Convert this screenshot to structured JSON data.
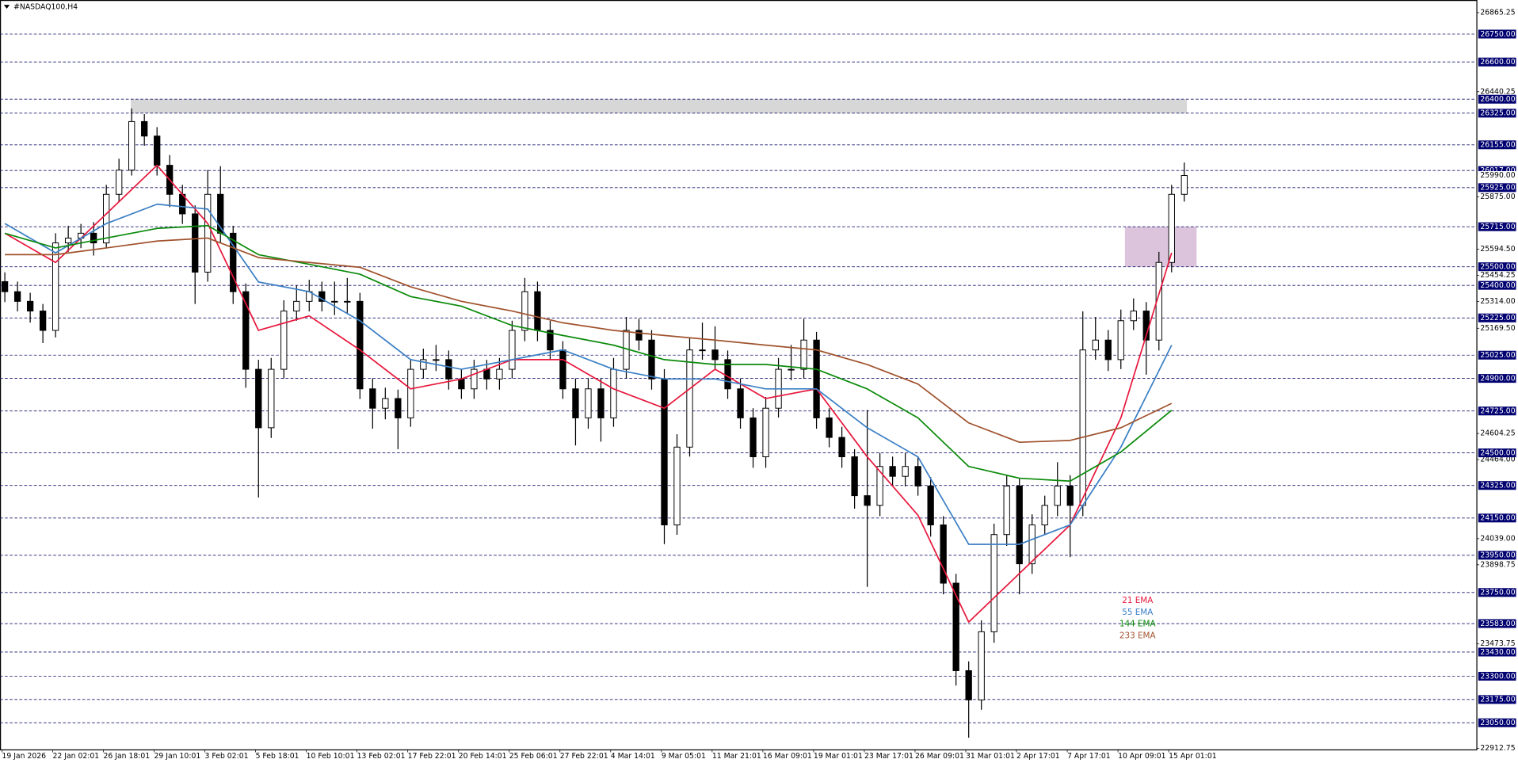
{
  "chart_data": {
    "type": "candlestick",
    "title": "#NASDAQ100,H4",
    "ylim": [
      22907,
      26933
    ],
    "yticks": [
      {
        "value": 26865.25,
        "label": "26865.25"
      },
      {
        "value": 26440.25,
        "label": "26440.25"
      },
      {
        "value": 25875,
        "label": "25875.00"
      },
      {
        "value": 25594.5,
        "label": "25594.50"
      },
      {
        "value": 25454.25,
        "label": "25454.25"
      },
      {
        "value": 25314,
        "label": "25314.00"
      },
      {
        "value": 25169.5,
        "label": "25169.50"
      },
      {
        "value": 24604.25,
        "label": "24604.25"
      },
      {
        "value": 24464,
        "label": "24464.00"
      },
      {
        "value": 24039,
        "label": "24039.00"
      },
      {
        "value": 23898.75,
        "label": "23898.75"
      },
      {
        "value": 23473.75,
        "label": "23473.75"
      },
      {
        "value": 22912.75,
        "label": "22912.75"
      }
    ],
    "levels": [
      {
        "value": 26750,
        "label": "26750.00"
      },
      {
        "value": 26600,
        "label": "26600.00"
      },
      {
        "value": 26400,
        "label": "26400.00"
      },
      {
        "value": 26325,
        "label": "26325.00"
      },
      {
        "value": 26155,
        "label": "26155.00"
      },
      {
        "value": 26017,
        "label": "26017.00"
      },
      {
        "value": 25925,
        "label": "25925.00"
      },
      {
        "value": 25715,
        "label": "25715.00"
      },
      {
        "value": 25500,
        "label": "25500.00"
      },
      {
        "value": 25400,
        "label": "25400.00"
      },
      {
        "value": 25225,
        "label": "25225.00"
      },
      {
        "value": 25025,
        "label": "25025.00"
      },
      {
        "value": 24900,
        "label": "24900.00"
      },
      {
        "value": 24725,
        "label": "24725.00"
      },
      {
        "value": 24500,
        "label": "24500.00"
      },
      {
        "value": 24325,
        "label": "24325.00"
      },
      {
        "value": 24150,
        "label": "24150.00"
      },
      {
        "value": 23950,
        "label": "23950.00"
      },
      {
        "value": 23750,
        "label": "23750.00"
      },
      {
        "value": 23583,
        "label": "23583.00"
      },
      {
        "value": 23430,
        "label": "23430.00"
      },
      {
        "value": 23300,
        "label": "23300.00"
      },
      {
        "value": 23175,
        "label": "23175.00"
      },
      {
        "value": 23050,
        "label": "23050.00"
      }
    ],
    "last_price": {
      "value": 25990,
      "label": "25990.00"
    },
    "x_labels": [
      "19 Jan 2026",
      "22 Jan 02:01",
      "26 Jan 18:01",
      "29 Jan 10:01",
      "3 Feb 02:01",
      "5 Feb 18:01",
      "10 Feb 10:01",
      "13 Feb 02:01",
      "17 Feb 22:01",
      "20 Feb 14:01",
      "25 Feb 06:01",
      "27 Feb 22:01",
      "4 Mar 14:01",
      "9 Mar 05:01",
      "11 Mar 21:01",
      "16 Mar 09:01",
      "19 Mar 01:01",
      "23 Mar 17:01",
      "26 Mar 09:01",
      "31 Mar 01:01",
      "2 Apr 17:01",
      "7 Apr 17:01",
      "10 Apr 09:01",
      "15 Apr 01:01"
    ],
    "ohlc": [
      [
        25420,
        25470,
        25310,
        25366
      ],
      [
        25366,
        25420,
        25260,
        25314
      ],
      [
        25314,
        25360,
        25200,
        25262
      ],
      [
        25262,
        25300,
        25090,
        25158
      ],
      [
        25158,
        25680,
        25120,
        25628
      ],
      [
        25628,
        25720,
        25580,
        25654
      ],
      [
        25654,
        25730,
        25600,
        25680
      ],
      [
        25680,
        25740,
        25560,
        25628
      ],
      [
        25628,
        25940,
        25600,
        25889
      ],
      [
        25889,
        26080,
        25850,
        26019
      ],
      [
        26019,
        26350,
        25990,
        26280
      ],
      [
        26280,
        26320,
        26150,
        26202
      ],
      [
        26202,
        26250,
        25990,
        26045
      ],
      [
        26045,
        26100,
        25820,
        25889
      ],
      [
        25889,
        25940,
        25730,
        25784
      ],
      [
        25784,
        25830,
        25300,
        25471
      ],
      [
        25471,
        26020,
        25420,
        25889
      ],
      [
        25889,
        26040,
        25630,
        25680
      ],
      [
        25680,
        25720,
        25300,
        25366
      ],
      [
        25366,
        25410,
        24850,
        24949
      ],
      [
        24949,
        25000,
        24260,
        24635
      ],
      [
        24635,
        25010,
        24580,
        24949
      ],
      [
        24949,
        25320,
        24900,
        25262
      ],
      [
        25262,
        25400,
        25210,
        25314
      ],
      [
        25314,
        25430,
        25260,
        25366
      ],
      [
        25366,
        25420,
        25260,
        25314
      ],
      [
        25314,
        25420,
        25240,
        25314
      ],
      [
        25314,
        25440,
        25250,
        25314
      ],
      [
        25314,
        25360,
        24790,
        24844
      ],
      [
        24844,
        24900,
        24630,
        24740
      ],
      [
        24740,
        24850,
        24680,
        24792
      ],
      [
        24792,
        24840,
        24520,
        24688
      ],
      [
        24688,
        25000,
        24640,
        24949
      ],
      [
        24949,
        25060,
        24900,
        25001
      ],
      [
        25001,
        25080,
        24940,
        25001
      ],
      [
        25001,
        25050,
        24840,
        24897
      ],
      [
        24897,
        24950,
        24790,
        24844
      ],
      [
        24844,
        25000,
        24790,
        24949
      ],
      [
        24949,
        25000,
        24840,
        24897
      ],
      [
        24897,
        25010,
        24840,
        24949
      ],
      [
        24949,
        25210,
        24900,
        25158
      ],
      [
        25158,
        25440,
        25100,
        25366
      ],
      [
        25366,
        25420,
        25100,
        25158
      ],
      [
        25158,
        25210,
        25000,
        25053
      ],
      [
        25053,
        25100,
        24790,
        24844
      ],
      [
        24844,
        24900,
        24540,
        24688
      ],
      [
        24688,
        24900,
        24630,
        24844
      ],
      [
        24844,
        24900,
        24560,
        24688
      ],
      [
        24688,
        25010,
        24640,
        24949
      ],
      [
        24949,
        25230,
        24900,
        25158
      ],
      [
        25158,
        25220,
        25050,
        25106
      ],
      [
        25106,
        25160,
        24840,
        24897
      ],
      [
        24897,
        24950,
        24010,
        24113
      ],
      [
        24113,
        24600,
        24060,
        24531
      ],
      [
        24531,
        25120,
        24480,
        25053
      ],
      [
        25053,
        25200,
        25000,
        25053
      ],
      [
        25053,
        25180,
        24950,
        25001
      ],
      [
        25001,
        25050,
        24790,
        24844
      ],
      [
        24844,
        24900,
        24630,
        24688
      ],
      [
        24688,
        24740,
        24420,
        24479
      ],
      [
        24479,
        24800,
        24420,
        24740
      ],
      [
        24740,
        25010,
        24690,
        24949
      ],
      [
        24949,
        25080,
        24890,
        24949
      ],
      [
        24949,
        25220,
        24900,
        25106
      ],
      [
        25106,
        25150,
        24630,
        24688
      ],
      [
        24688,
        24740,
        24530,
        24583
      ],
      [
        24583,
        24640,
        24420,
        24479
      ],
      [
        24479,
        24520,
        24200,
        24270
      ],
      [
        24270,
        24730,
        23780,
        24218
      ],
      [
        24218,
        24500,
        24160,
        24427
      ],
      [
        24427,
        24480,
        24320,
        24374
      ],
      [
        24374,
        24500,
        24320,
        24427
      ],
      [
        24427,
        24480,
        24270,
        24322
      ],
      [
        24322,
        24370,
        24050,
        24113
      ],
      [
        24113,
        24160,
        23740,
        23800
      ],
      [
        23800,
        23850,
        23250,
        23330
      ],
      [
        23330,
        23380,
        22970,
        23173
      ],
      [
        23173,
        23600,
        23120,
        23539
      ],
      [
        23539,
        24120,
        23480,
        24061
      ],
      [
        24061,
        24380,
        24000,
        24322
      ],
      [
        24322,
        24360,
        23740,
        23904
      ],
      [
        23904,
        24170,
        23850,
        24113
      ],
      [
        24113,
        24270,
        24060,
        24218
      ],
      [
        24218,
        24450,
        24160,
        24322
      ],
      [
        24322,
        24380,
        23940,
        24218
      ],
      [
        24218,
        25260,
        24160,
        25053
      ],
      [
        25053,
        25230,
        25000,
        25106
      ],
      [
        25106,
        25160,
        24940,
        25001
      ],
      [
        25001,
        25270,
        24950,
        25210
      ],
      [
        25210,
        25330,
        25160,
        25262
      ],
      [
        25262,
        25310,
        24920,
        25106
      ],
      [
        25106,
        25580,
        25050,
        25523
      ],
      [
        25523,
        25940,
        25470,
        25889
      ],
      [
        25889,
        26060,
        25850,
        25990
      ]
    ],
    "ema": [
      {
        "name": "21 EMA",
        "color": "#e8173c",
        "values": [
          25680,
          25523,
          25784,
          26045,
          25732,
          25158,
          25236,
          25053,
          24844,
          24897,
          25001,
          25001,
          24844,
          24740,
          24949,
          24792,
          24844,
          24479,
          24165,
          23591,
          23852,
          24113,
          24688,
          25575
        ]
      },
      {
        "name": "55 EMA",
        "color": "#3b7fc4",
        "values": [
          25732,
          25575,
          25732,
          25836,
          25810,
          25418,
          25366,
          25210,
          25001,
          24949,
          25001,
          25053,
          24949,
          24897,
          24897,
          24844,
          24844,
          24635,
          24479,
          24009,
          24009,
          24113,
          24531,
          25079
        ]
      },
      {
        "name": "144 EMA",
        "color": "#0a8a0a",
        "values": [
          25680,
          25601,
          25654,
          25706,
          25721,
          25565,
          25513,
          25460,
          25340,
          25288,
          25184,
          25131,
          25079,
          25001,
          24975,
          24975,
          24949,
          24844,
          24688,
          24427,
          24364,
          24348,
          24505,
          24729
        ]
      },
      {
        "name": "233 EMA",
        "color": "#a0522d",
        "values": [
          25565,
          25565,
          25601,
          25638,
          25654,
          25549,
          25523,
          25497,
          25392,
          25314,
          25262,
          25199,
          25158,
          25131,
          25106,
          25079,
          25053,
          24975,
          24870,
          24661,
          24557,
          24567,
          24635,
          24766
        ]
      }
    ],
    "zones": [
      {
        "range": [
          26325,
          26400
        ],
        "color": "#d3d3d3"
      },
      {
        "range": [
          25500,
          25715
        ],
        "color": "#d8bfd8"
      }
    ]
  }
}
